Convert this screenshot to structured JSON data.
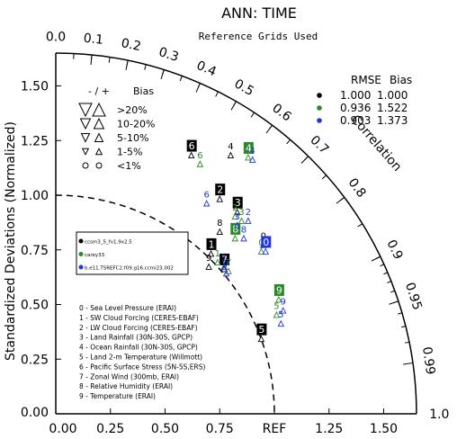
{
  "chart_data": {
    "type": "taylor",
    "title": "ANN: TIME",
    "subtitle": "Reference Grids Used",
    "xlabel": "",
    "ylabel": "Standardized Deviations (Normalized)",
    "angular_label": "Correlation",
    "ref_label": "REF",
    "xlim": [
      0,
      1.65
    ],
    "ylim": [
      0,
      1.65
    ],
    "x_ticks": [
      "0.00",
      "0.25",
      "0.50",
      "0.75",
      "",
      "1.25",
      "1.50"
    ],
    "y_ticks": [
      "0.00",
      "0.25",
      "0.50",
      "0.75",
      "1.00",
      "1.25",
      "1.50"
    ],
    "corr_ticks": [
      "0.0",
      "0.1",
      "0.2",
      "0.3",
      "0.4",
      "0.5",
      "0.6",
      "0.7",
      "0.8",
      "0.9",
      "0.95",
      "0.99",
      "1.0"
    ],
    "bias_legend": {
      "header": "-  /  +",
      "title": "Bias",
      "rows": [
        ">20%",
        "10-20%",
        "5-10%",
        "1-5%",
        "<1%"
      ]
    },
    "stats_legend": {
      "header_rmse": "RMSE",
      "header_bias": "Bias",
      "rows": [
        {
          "rmse": "1.000",
          "bias": "1.000",
          "color": "#000000"
        },
        {
          "rmse": "0.936",
          "bias": "1.522",
          "color": "#2a8a2a"
        },
        {
          "rmse": "0.903",
          "bias": "1.373",
          "color": "#1f35e0"
        }
      ]
    },
    "case_legend": [
      {
        "name": "ccsm3_5_fv1.9x2.5",
        "color": "#000000"
      },
      {
        "name": "carey33",
        "color": "#2a8a2a"
      },
      {
        "name": "b.e11.TSREFC2.f09.g16.ccmi23.002",
        "color": "#1f35e0"
      }
    ],
    "variables": [
      "0 - Sea Level Pressure (ERAI)",
      "1 - SW Cloud Forcing (CERES-EBAF)",
      "2 - LW Cloud Forcing (CERES-EBAF)",
      "3 - Land Rainfall (30N-30S, GPCP)",
      "4 - Ocean Rainfall (30N-30S, GPCP)",
      "5 - Land 2-m Temperature (Willmott)",
      "6 - Pacific Surface Stress (5N-5S,ERS)",
      "7 - Zonal Wind (300mb, ERAI)",
      "8 - Relative Humidity (ERAI)",
      "9 - Temperature (ERAI)"
    ],
    "series": [
      {
        "name": "ccsm3_5_fv1.9x2.5",
        "color": "#000000",
        "points": [
          {
            "label": "0",
            "x": 0.95,
            "y": 0.81,
            "boxed": false
          },
          {
            "label": "1",
            "x": 0.71,
            "y": 0.77,
            "boxed": true
          },
          {
            "label": "2",
            "x": 0.75,
            "y": 1.02,
            "boxed": true
          },
          {
            "label": "3",
            "x": 0.83,
            "y": 0.96,
            "boxed": true
          },
          {
            "label": "4",
            "x": 0.8,
            "y": 1.22,
            "boxed": false
          },
          {
            "label": "5",
            "x": 0.94,
            "y": 0.38,
            "boxed": true
          },
          {
            "label": "6",
            "x": 0.62,
            "y": 1.22,
            "boxed": true
          },
          {
            "label": "7",
            "x": 0.77,
            "y": 0.7,
            "boxed": true
          },
          {
            "label": "8",
            "x": 0.75,
            "y": 0.87,
            "boxed": false
          },
          {
            "label": "9",
            "x": 0.7,
            "y": 0.71,
            "boxed": false
          }
        ]
      },
      {
        "name": "carey33",
        "color": "#2a8a2a",
        "points": [
          {
            "label": "0",
            "x": 0.94,
            "y": 0.78,
            "boxed": false
          },
          {
            "label": "1",
            "x": 0.74,
            "y": 0.73,
            "boxed": false
          },
          {
            "label": "2",
            "x": 0.82,
            "y": 0.94,
            "boxed": false
          },
          {
            "label": "3",
            "x": 0.85,
            "y": 0.92,
            "boxed": false
          },
          {
            "label": "4",
            "x": 0.88,
            "y": 1.21,
            "boxed": true
          },
          {
            "label": "5",
            "x": 1.01,
            "y": 0.49,
            "boxed": false
          },
          {
            "label": "6",
            "x": 0.66,
            "y": 1.18,
            "boxed": false
          },
          {
            "label": "7",
            "x": 0.79,
            "y": 0.69,
            "boxed": false
          },
          {
            "label": "8",
            "x": 0.82,
            "y": 0.84,
            "boxed": true
          },
          {
            "label": "9",
            "x": 1.02,
            "y": 0.56,
            "boxed": true
          }
        ]
      },
      {
        "name": "b.e11.TSREFC2.f09.g16.ccmi23.002",
        "color": "#1f35e0",
        "points": [
          {
            "label": "0",
            "x": 0.96,
            "y": 0.78,
            "boxed": true
          },
          {
            "label": "1",
            "x": 0.77,
            "y": 0.71,
            "boxed": false
          },
          {
            "label": "2",
            "x": 0.88,
            "y": 0.92,
            "boxed": false
          },
          {
            "label": "3",
            "x": 0.83,
            "y": 0.9,
            "boxed": false
          },
          {
            "label": "4",
            "x": 0.9,
            "y": 1.2,
            "boxed": false
          },
          {
            "label": "5",
            "x": 1.03,
            "y": 0.45,
            "boxed": false
          },
          {
            "label": "6",
            "x": 0.69,
            "y": 1.0,
            "boxed": false
          },
          {
            "label": "7",
            "x": 0.78,
            "y": 0.68,
            "boxed": false
          },
          {
            "label": "8",
            "x": 0.86,
            "y": 0.84,
            "boxed": false
          },
          {
            "label": "9",
            "x": 1.04,
            "y": 0.51,
            "boxed": false
          }
        ]
      }
    ]
  }
}
